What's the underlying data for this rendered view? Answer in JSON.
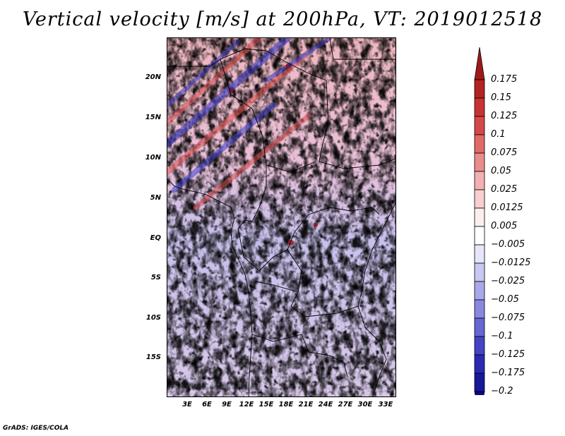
{
  "title": "Vertical velocity [m/s] at 200hPa, VT: 2019012518",
  "footer": "GrADS: IGES/COLA",
  "lat_labels": [
    "20N",
    "15N",
    "10N",
    "5N",
    "EQ",
    "5S",
    "10S",
    "15S"
  ],
  "lon_labels": [
    "3E",
    "6E",
    "9E",
    "12E",
    "15E",
    "18E",
    "21E",
    "24E",
    "27E",
    "30E",
    "33E"
  ],
  "colorbar": {
    "labels": [
      "0.175",
      "0.15",
      "0.125",
      "0.1",
      "0.075",
      "0.05",
      "0.025",
      "0.0125",
      "0.005",
      "−0.005",
      "−0.0125",
      "−0.025",
      "−0.05",
      "−0.075",
      "−0.1",
      "−0.125",
      "−0.175",
      "−0.2"
    ],
    "colors": [
      "#a01818",
      "#b52222",
      "#c83232",
      "#d64848",
      "#e06a6a",
      "#ea8c8c",
      "#f2b0b0",
      "#f8d0d0",
      "#fdeeee",
      "#ffffff",
      "#e6e6fb",
      "#c8c8f3",
      "#a8a8ea",
      "#8888e0",
      "#6666d4",
      "#4444c4",
      "#2a2ab2",
      "#18189a",
      "#0a0a80"
    ]
  },
  "colors": {
    "warm": "#e07070",
    "cool": "#8080e0",
    "coast": "#000000"
  }
}
